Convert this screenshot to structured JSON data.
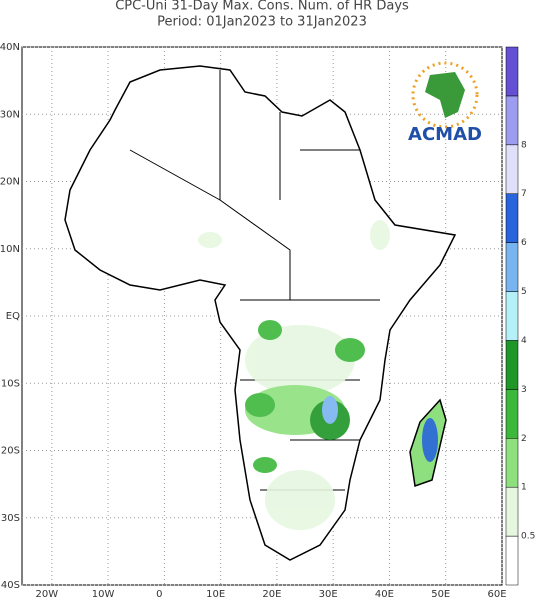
{
  "title": [
    "CPC-Uni 31-Day Max. Cons. Num. of HR Days",
    "Period: 01Jan2023 to 31Jan2023"
  ],
  "map": {
    "xlim": [
      -25.3,
      60
    ],
    "ylim": [
      -40,
      40
    ],
    "xticks": [
      {
        "value": -20,
        "label": "20W"
      },
      {
        "value": -10,
        "label": "10W"
      },
      0,
      {
        "value": 10,
        "label": "10E"
      },
      {
        "value": 20,
        "label": "20E"
      },
      {
        "value": 30,
        "label": "30E"
      },
      {
        "value": 40,
        "label": "40E"
      },
      {
        "value": 50,
        "label": "50E"
      },
      {
        "value": 60,
        "label": "60E"
      }
    ],
    "yticks": [
      {
        "value": 40,
        "label": "40N"
      },
      {
        "value": 30,
        "label": "30N"
      },
      {
        "value": 20,
        "label": "20N"
      },
      {
        "value": 10,
        "label": "10N"
      },
      {
        "value": 0,
        "label": "EQ"
      },
      {
        "value": -10,
        "label": "10S"
      },
      {
        "value": -20,
        "label": "20S"
      },
      {
        "value": -30,
        "label": "30S"
      },
      {
        "value": -40,
        "label": "40S"
      }
    ]
  },
  "colorbar": {
    "levels": [
      0.5,
      1,
      2,
      3,
      4,
      5,
      6,
      7,
      8
    ],
    "colors": [
      "#ffffff",
      "#e6f7e0",
      "#8ee07e",
      "#3cb83c",
      "#1e9628",
      "#b4f0f8",
      "#78b4f0",
      "#2864dc",
      "#e0e0fa",
      "#9c9cf0",
      "#6450d2"
    ]
  },
  "logo": "ACMAD"
}
